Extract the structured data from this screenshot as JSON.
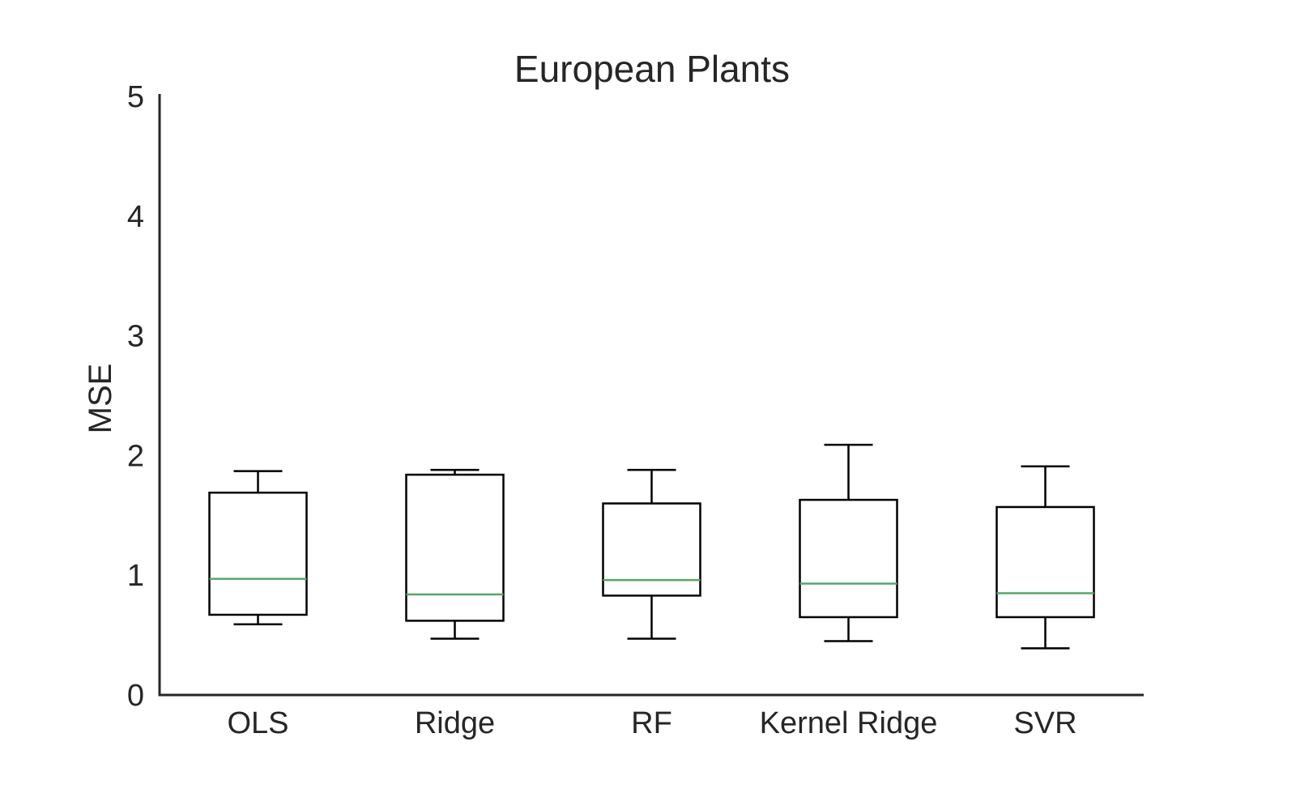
{
  "chart_data": {
    "type": "box",
    "title": "European Plants",
    "xlabel": "",
    "ylabel": "MSE",
    "ylim": [
      0,
      5
    ],
    "yticks": [
      0,
      1,
      2,
      3,
      4,
      5
    ],
    "grid": false,
    "median_color": "#55a868",
    "box_color": "#000000",
    "categories": [
      "OLS",
      "Ridge",
      "RF",
      "Kernel Ridge",
      "SVR"
    ],
    "boxes": [
      {
        "label": "OLS",
        "whisker_low": 0.59,
        "q1": 0.67,
        "median": 0.97,
        "q3": 1.69,
        "whisker_high": 1.87
      },
      {
        "label": "Ridge",
        "whisker_low": 0.47,
        "q1": 0.62,
        "median": 0.84,
        "q3": 1.84,
        "whisker_high": 1.88
      },
      {
        "label": "RF",
        "whisker_low": 0.47,
        "q1": 0.83,
        "median": 0.96,
        "q3": 1.6,
        "whisker_high": 1.88
      },
      {
        "label": "Kernel Ridge",
        "whisker_low": 0.45,
        "q1": 0.65,
        "median": 0.93,
        "q3": 1.63,
        "whisker_high": 2.09
      },
      {
        "label": "SVR",
        "whisker_low": 0.39,
        "q1": 0.65,
        "median": 0.85,
        "q3": 1.57,
        "whisker_high": 1.91
      }
    ]
  }
}
